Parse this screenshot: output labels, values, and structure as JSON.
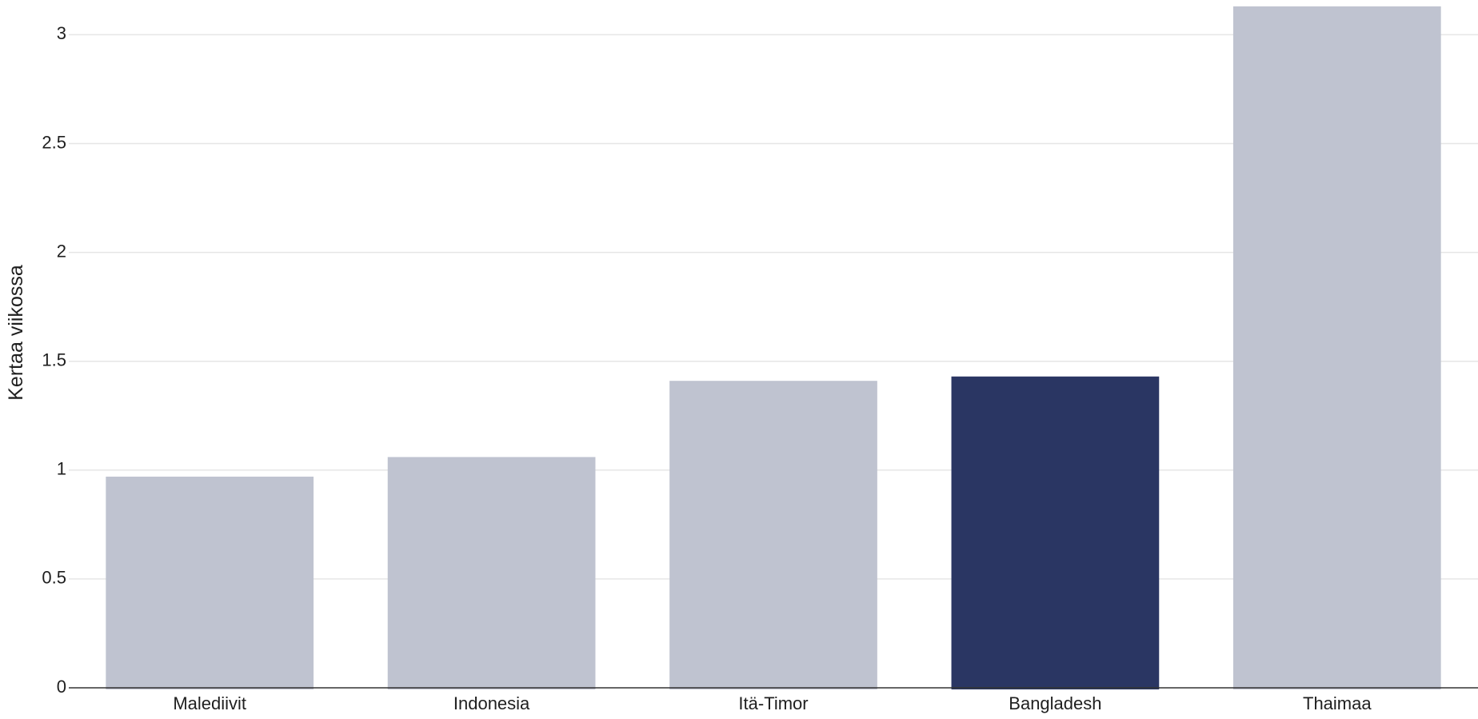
{
  "chart_data": {
    "type": "bar",
    "categories": [
      "Malediivit",
      "Indonesia",
      "Itä-Timor",
      "Bangladesh",
      "Thaimaa"
    ],
    "values": [
      0.97,
      1.06,
      1.41,
      1.43,
      3.13
    ],
    "highlight": "Bangladesh",
    "title": "",
    "xlabel": "",
    "ylabel": "Kertaa viikossa",
    "ylim": [
      0,
      3.13
    ],
    "yticks": [
      0,
      0.5,
      1,
      1.5,
      2,
      2.5,
      3
    ],
    "ytick_labels": [
      "0",
      "0.5",
      "1",
      "1.5",
      "2",
      "2.5",
      "3"
    ],
    "grid": true,
    "colors": {
      "bar": "#bfc3d0",
      "highlight": "#2a3663",
      "grid": "#e6e6e6",
      "baseline": "#333333"
    }
  }
}
